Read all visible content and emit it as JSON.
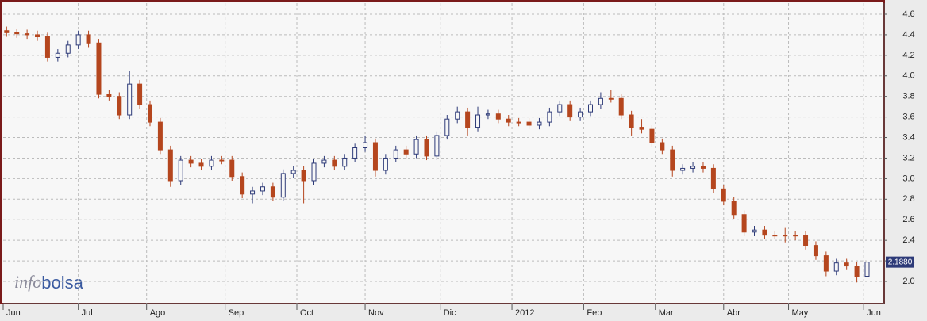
{
  "chart_data": {
    "type": "candlestick",
    "watermark": [
      "info",
      "bolsa"
    ],
    "up_color": "#2d3a78",
    "down_color": "#b5461e",
    "grid": true,
    "ylim": [
      1.784,
      4.708
    ],
    "yticks": [
      {
        "value": 2,
        "label": "2.0"
      },
      2.2,
      2.4,
      2.6,
      2.8,
      {
        "value": 3,
        "label": "3.0"
      },
      3.2,
      3.4,
      3.6,
      3.8,
      {
        "value": 4,
        "label": "4.0"
      },
      4.2,
      4.4,
      4.6
    ],
    "xlim": [
      0,
      258
    ],
    "xticks": [
      {
        "value": 0,
        "label": "Jun"
      },
      {
        "value": 22,
        "label": "Jul"
      },
      {
        "value": 42,
        "label": "Ago"
      },
      {
        "value": 65,
        "label": "Sep"
      },
      {
        "value": 86,
        "label": "Oct"
      },
      {
        "value": 106,
        "label": "Nov"
      },
      {
        "value": 128,
        "label": "Dic"
      },
      {
        "value": 149,
        "label": "2012"
      },
      {
        "value": 170,
        "label": "Feb"
      },
      {
        "value": 191,
        "label": "Mar"
      },
      {
        "value": 211,
        "label": "Abr"
      },
      {
        "value": 230,
        "label": "May"
      },
      {
        "value": 252,
        "label": "Jun"
      }
    ],
    "last_price": {
      "value": 2.188,
      "label": "2.1880"
    },
    "x": [
      1,
      4,
      7,
      10,
      13,
      16,
      19,
      22,
      25,
      28,
      31,
      34,
      37,
      40,
      43,
      46,
      49,
      52,
      55,
      58,
      61,
      64,
      67,
      70,
      73,
      76,
      79,
      82,
      85,
      88,
      91,
      94,
      97,
      100,
      103,
      106,
      109,
      112,
      115,
      118,
      121,
      124,
      127,
      130,
      133,
      136,
      139,
      142,
      145,
      148,
      151,
      154,
      157,
      160,
      163,
      166,
      169,
      172,
      175,
      178,
      181,
      184,
      187,
      190,
      193,
      196,
      199,
      202,
      205,
      208,
      211,
      214,
      217,
      220,
      223,
      226,
      229,
      232,
      235,
      238,
      241,
      244,
      247,
      250,
      253
    ],
    "open": [
      4.44,
      4.42,
      4.41,
      4.4,
      4.38,
      4.18,
      4.22,
      4.3,
      4.4,
      4.32,
      3.82,
      3.8,
      3.62,
      3.92,
      3.72,
      3.55,
      3.28,
      2.98,
      3.18,
      3.15,
      3.12,
      3.18,
      3.18,
      3.02,
      2.85,
      2.88,
      2.92,
      2.82,
      3.05,
      3.08,
      2.98,
      3.15,
      3.18,
      3.12,
      3.2,
      3.3,
      3.35,
      3.08,
      3.2,
      3.28,
      3.24,
      3.38,
      3.22,
      3.42,
      3.58,
      3.65,
      3.5,
      3.62,
      3.63,
      3.58,
      3.55,
      3.55,
      3.52,
      3.55,
      3.65,
      3.72,
      3.6,
      3.65,
      3.72,
      3.78,
      3.78,
      3.62,
      3.5,
      3.48,
      3.35,
      3.28,
      3.08,
      3.1,
      3.12,
      3.1,
      2.9,
      2.78,
      2.65,
      2.48,
      2.5,
      2.45,
      2.45,
      2.45,
      2.45,
      2.35,
      2.25,
      2.1,
      2.18,
      2.15,
      2.05
    ],
    "high": [
      4.48,
      4.46,
      4.45,
      4.44,
      4.42,
      4.26,
      4.34,
      4.44,
      4.44,
      4.36,
      3.86,
      3.84,
      4.05,
      3.96,
      3.76,
      3.59,
      3.32,
      3.22,
      3.22,
      3.19,
      3.22,
      3.22,
      3.22,
      3.06,
      2.92,
      2.96,
      2.96,
      3.09,
      3.12,
      3.12,
      3.19,
      3.22,
      3.22,
      3.24,
      3.34,
      3.42,
      3.39,
      3.24,
      3.32,
      3.32,
      3.42,
      3.42,
      3.46,
      3.62,
      3.7,
      3.69,
      3.7,
      3.67,
      3.67,
      3.62,
      3.59,
      3.59,
      3.59,
      3.69,
      3.76,
      3.76,
      3.69,
      3.76,
      3.84,
      3.86,
      3.82,
      3.66,
      3.58,
      3.52,
      3.39,
      3.32,
      3.14,
      3.16,
      3.16,
      3.14,
      2.94,
      2.82,
      2.69,
      2.54,
      2.54,
      2.49,
      2.52,
      2.49,
      2.49,
      2.39,
      2.29,
      2.22,
      2.22,
      2.19,
      2.21
    ],
    "low": [
      4.38,
      4.37,
      4.36,
      4.34,
      4.14,
      4.14,
      4.18,
      4.26,
      4.28,
      3.78,
      3.76,
      3.58,
      3.58,
      3.68,
      3.51,
      3.24,
      2.92,
      2.94,
      3.11,
      3.08,
      3.08,
      3.14,
      2.98,
      2.81,
      2.76,
      2.84,
      2.78,
      2.78,
      3.01,
      2.76,
      2.94,
      3.11,
      3.08,
      3.08,
      3.16,
      3.26,
      3.02,
      3.04,
      3.16,
      3.2,
      3.2,
      3.18,
      3.18,
      3.38,
      3.54,
      3.42,
      3.46,
      3.58,
      3.54,
      3.51,
      3.51,
      3.48,
      3.48,
      3.51,
      3.61,
      3.56,
      3.56,
      3.61,
      3.68,
      3.74,
      3.58,
      3.42,
      3.44,
      3.31,
      3.24,
      3.02,
      3.04,
      3.06,
      3.06,
      2.86,
      2.74,
      2.61,
      2.44,
      2.44,
      2.41,
      2.41,
      2.38,
      2.4,
      2.31,
      2.21,
      2.05,
      2.06,
      2.11,
      1.99,
      2.01
    ],
    "close": [
      4.42,
      4.41,
      4.4,
      4.38,
      4.18,
      4.22,
      4.3,
      4.4,
      4.32,
      3.82,
      3.8,
      3.62,
      3.92,
      3.72,
      3.55,
      3.28,
      2.98,
      3.18,
      3.15,
      3.12,
      3.18,
      3.18,
      3.02,
      2.85,
      2.88,
      2.92,
      2.82,
      3.05,
      3.08,
      2.98,
      3.15,
      3.18,
      3.12,
      3.2,
      3.3,
      3.35,
      3.08,
      3.2,
      3.28,
      3.24,
      3.38,
      3.22,
      3.42,
      3.58,
      3.65,
      3.5,
      3.62,
      3.63,
      3.58,
      3.55,
      3.55,
      3.52,
      3.55,
      3.65,
      3.72,
      3.6,
      3.65,
      3.72,
      3.78,
      3.78,
      3.62,
      3.5,
      3.48,
      3.35,
      3.28,
      3.08,
      3.1,
      3.12,
      3.1,
      2.9,
      2.78,
      2.65,
      2.48,
      2.5,
      2.45,
      2.45,
      2.45,
      2.45,
      2.35,
      2.25,
      2.1,
      2.18,
      2.15,
      2.05,
      2.188
    ]
  }
}
